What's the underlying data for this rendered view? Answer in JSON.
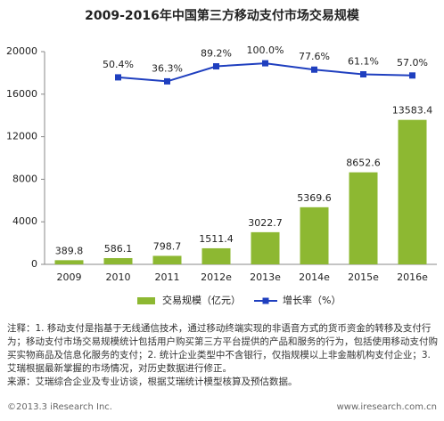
{
  "chart_data": {
    "type": "bar",
    "title": "2009-2016年中国第三方移动支付市场交易规模",
    "categories": [
      "2009",
      "2010",
      "2011",
      "2012e",
      "2013e",
      "2014e",
      "2015e",
      "2016e"
    ],
    "series": [
      {
        "name": "交易规模（亿元）",
        "color": "#8db832",
        "type": "bar",
        "values": [
          389.8,
          586.1,
          798.7,
          1511.4,
          3022.7,
          5369.6,
          8652.6,
          13583.4
        ]
      },
      {
        "name": "增长率（%）",
        "color": "#1f3fbf",
        "type": "line",
        "axis": "y2",
        "values": [
          null,
          50.4,
          36.3,
          89.2,
          100.0,
          77.6,
          61.1,
          57.0
        ],
        "value_labels": [
          null,
          "50.4%",
          "36.3%",
          "89.2%",
          "100.0%",
          "77.6%",
          "61.1%",
          "57.0%"
        ]
      }
    ],
    "ylim": [
      0,
      20000
    ],
    "yticks": [
      0,
      4000,
      8000,
      12000,
      16000,
      20000
    ],
    "y2lim": [
      -608,
      141
    ],
    "note": "注释：1. 移动支付是指基于无线通信技术，通过移动终端实现的非语音方式的货币资金的转移及支付行为；移动支付市场交易规模统计包括用户购买第三方平台提供的产品和服务的行为，包括使用移动支付购买实物商品及信息化服务的支付；2. 统计企业类型中不含银行，仅指规模以上非金融机构支付企业；3. 艾瑞根据最新掌握的市场情况，对历史数据进行修正。",
    "source": "来源：艾瑞综合企业及专业访谈，根据艾瑞统计模型核算及预估数据。",
    "copyright": "©2013.3 iResearch Inc.",
    "website": "www.iresearch.com.cn"
  }
}
